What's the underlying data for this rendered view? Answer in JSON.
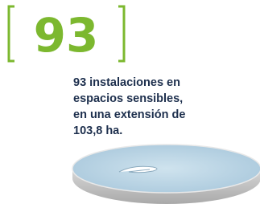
{
  "number": "93",
  "description": [
    "93 instalaciones en",
    "espacios sensibles,",
    "en una extensión de",
    "103,8 ha."
  ]
}
